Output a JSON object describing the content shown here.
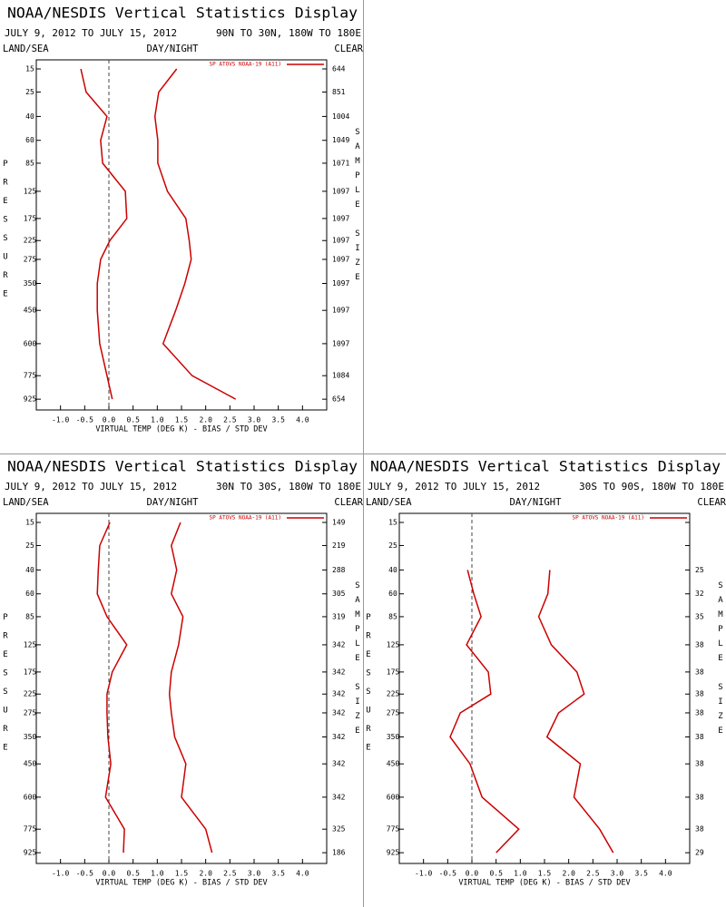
{
  "chart_data": [
    {
      "type": "line",
      "title": "NOAA/NESDIS Vertical Statistics Display",
      "subtitle": "JULY 9, 2012 TO JULY 15, 2012",
      "region": "90N TO 30N, 180W TO 180E",
      "left_header": "LAND/SEA",
      "center_header": "DAY/NIGHT",
      "right_header": "CLEAR",
      "y_label": "PRESSURE",
      "y2_label": "SAMPLE SIZE",
      "x_label": "VIRTUAL TEMP (DEG K) - BIAS / STD DEV",
      "yscale": "kappa",
      "ylim": [
        12,
        1000
      ],
      "yticks": [
        15,
        25,
        40,
        60,
        85,
        125,
        175,
        225,
        275,
        350,
        450,
        600,
        775,
        925
      ],
      "y": [
        15,
        25,
        40,
        60,
        85,
        125,
        175,
        225,
        275,
        350,
        450,
        600,
        775,
        925
      ],
      "xlim": [
        -1.5,
        4.5
      ],
      "xticks": [
        {
          "value": -1,
          "label": "-1.0"
        },
        {
          "value": -0.5,
          "label": "-0.5"
        },
        {
          "value": 0,
          "label": "0.0"
        },
        {
          "value": 0.5,
          "label": "0.5"
        },
        {
          "value": 1,
          "label": "1.0"
        },
        {
          "value": 1.5,
          "label": "1.5"
        },
        {
          "value": 2,
          "label": "2.0"
        },
        {
          "value": 2.5,
          "label": "2.5"
        },
        {
          "value": 3,
          "label": "3.0"
        },
        {
          "value": 3.5,
          "label": "3.5"
        },
        {
          "value": 4,
          "label": "4.0"
        }
      ],
      "sample_size": [
        644,
        851,
        1004,
        1049,
        1071,
        1097,
        1097,
        1097,
        1097,
        1097,
        1097,
        1097,
        1084,
        654
      ],
      "series": [
        {
          "name": "SP ATOVS NOAA-19 (A11)",
          "color": "#cc0000",
          "values": [
            -0.58,
            -0.47,
            -0.04,
            -0.17,
            -0.13,
            0.34,
            0.37,
            0.02,
            -0.17,
            -0.24,
            -0.24,
            -0.19,
            -0.04,
            0.07
          ],
          "std_dev": [
            1.4,
            1.03,
            0.95,
            1.01,
            1.01,
            1.21,
            1.59,
            1.66,
            1.7,
            1.57,
            1.38,
            1.12,
            1.72,
            2.62
          ]
        }
      ]
    },
    {
      "type": "line",
      "title": "NOAA/NESDIS Vertical Statistics Display",
      "subtitle": "JULY 9, 2012 TO JULY 15, 2012",
      "region": "30N TO 30S, 180W TO 180E",
      "left_header": "LAND/SEA",
      "center_header": "DAY/NIGHT",
      "right_header": "CLEAR",
      "y_label": "PRESSURE",
      "y2_label": "SAMPLE SIZE",
      "x_label": "VIRTUAL TEMP (DEG K) - BIAS / STD DEV",
      "yscale": "kappa",
      "ylim": [
        12,
        1000
      ],
      "yticks": [
        15,
        25,
        40,
        60,
        85,
        125,
        175,
        225,
        275,
        350,
        450,
        600,
        775,
        925
      ],
      "y": [
        15,
        25,
        40,
        60,
        85,
        125,
        175,
        225,
        275,
        350,
        450,
        600,
        775,
        925
      ],
      "xlim": [
        -1.5,
        4.5
      ],
      "xticks": [
        {
          "value": -1,
          "label": "-1.0"
        },
        {
          "value": -0.5,
          "label": "-0.5"
        },
        {
          "value": 0,
          "label": "0.0"
        },
        {
          "value": 0.5,
          "label": "0.5"
        },
        {
          "value": 1,
          "label": "1.0"
        },
        {
          "value": 1.5,
          "label": "1.5"
        },
        {
          "value": 2,
          "label": "2.0"
        },
        {
          "value": 2.5,
          "label": "2.5"
        },
        {
          "value": 3,
          "label": "3.0"
        },
        {
          "value": 3.5,
          "label": "3.5"
        },
        {
          "value": 4,
          "label": "4.0"
        }
      ],
      "sample_size": [
        149,
        219,
        288,
        305,
        319,
        342,
        342,
        342,
        342,
        342,
        342,
        342,
        325,
        186
      ],
      "series": [
        {
          "name": "SP ATOVS NOAA-19 (A11)",
          "color": "#cc0000",
          "values": [
            0.02,
            -0.19,
            -0.22,
            -0.24,
            -0.04,
            0.37,
            0.07,
            -0.04,
            -0.04,
            -0.02,
            0.04,
            -0.07,
            0.32,
            0.3
          ],
          "std_dev": [
            1.48,
            1.29,
            1.4,
            1.29,
            1.53,
            1.44,
            1.29,
            1.25,
            1.29,
            1.36,
            1.59,
            1.5,
            2.0,
            2.13
          ]
        }
      ]
    },
    {
      "type": "line",
      "title": "NOAA/NESDIS Vertical Statistics Display",
      "subtitle": "JULY 9, 2012 TO JULY 15, 2012",
      "region": "30S TO 90S, 180W TO 180E",
      "left_header": "LAND/SEA",
      "center_header": "DAY/NIGHT",
      "right_header": "CLEAR",
      "y_label": "PRESSURE",
      "y2_label": "SAMPLE SIZE",
      "x_label": "VIRTUAL TEMP (DEG K) - BIAS / STD DEV",
      "yscale": "kappa",
      "ylim": [
        12,
        1000
      ],
      "yticks": [
        15,
        25,
        40,
        60,
        85,
        125,
        175,
        225,
        275,
        350,
        450,
        600,
        775,
        925
      ],
      "y": [
        15,
        25,
        40,
        60,
        85,
        125,
        175,
        225,
        275,
        350,
        450,
        600,
        775,
        925
      ],
      "xlim": [
        -1.5,
        4.5
      ],
      "xticks": [
        {
          "value": -1,
          "label": "-1.0"
        },
        {
          "value": -0.5,
          "label": "-0.5"
        },
        {
          "value": 0,
          "label": "0.0"
        },
        {
          "value": 0.5,
          "label": "0.5"
        },
        {
          "value": 1,
          "label": "1.0"
        },
        {
          "value": 1.5,
          "label": "1.5"
        },
        {
          "value": 2,
          "label": "2.0"
        },
        {
          "value": 2.5,
          "label": "2.5"
        },
        {
          "value": 3,
          "label": "3.0"
        },
        {
          "value": 3.5,
          "label": "3.5"
        },
        {
          "value": 4,
          "label": "4.0"
        }
      ],
      "sample_size": [
        null,
        null,
        25,
        32,
        35,
        38,
        38,
        38,
        38,
        38,
        38,
        38,
        38,
        29
      ],
      "series": [
        {
          "name": "SP ATOVS NOAA-19 (A11)",
          "color": "#cc0000",
          "values": [
            null,
            null,
            -0.09,
            0.04,
            0.19,
            -0.11,
            0.34,
            0.39,
            -0.24,
            -0.45,
            -0.04,
            0.21,
            0.97,
            0.5
          ],
          "std_dev": [
            null,
            null,
            1.61,
            1.57,
            1.38,
            1.64,
            2.17,
            2.32,
            1.79,
            1.55,
            2.24,
            2.11,
            2.64,
            2.92
          ]
        }
      ]
    }
  ]
}
